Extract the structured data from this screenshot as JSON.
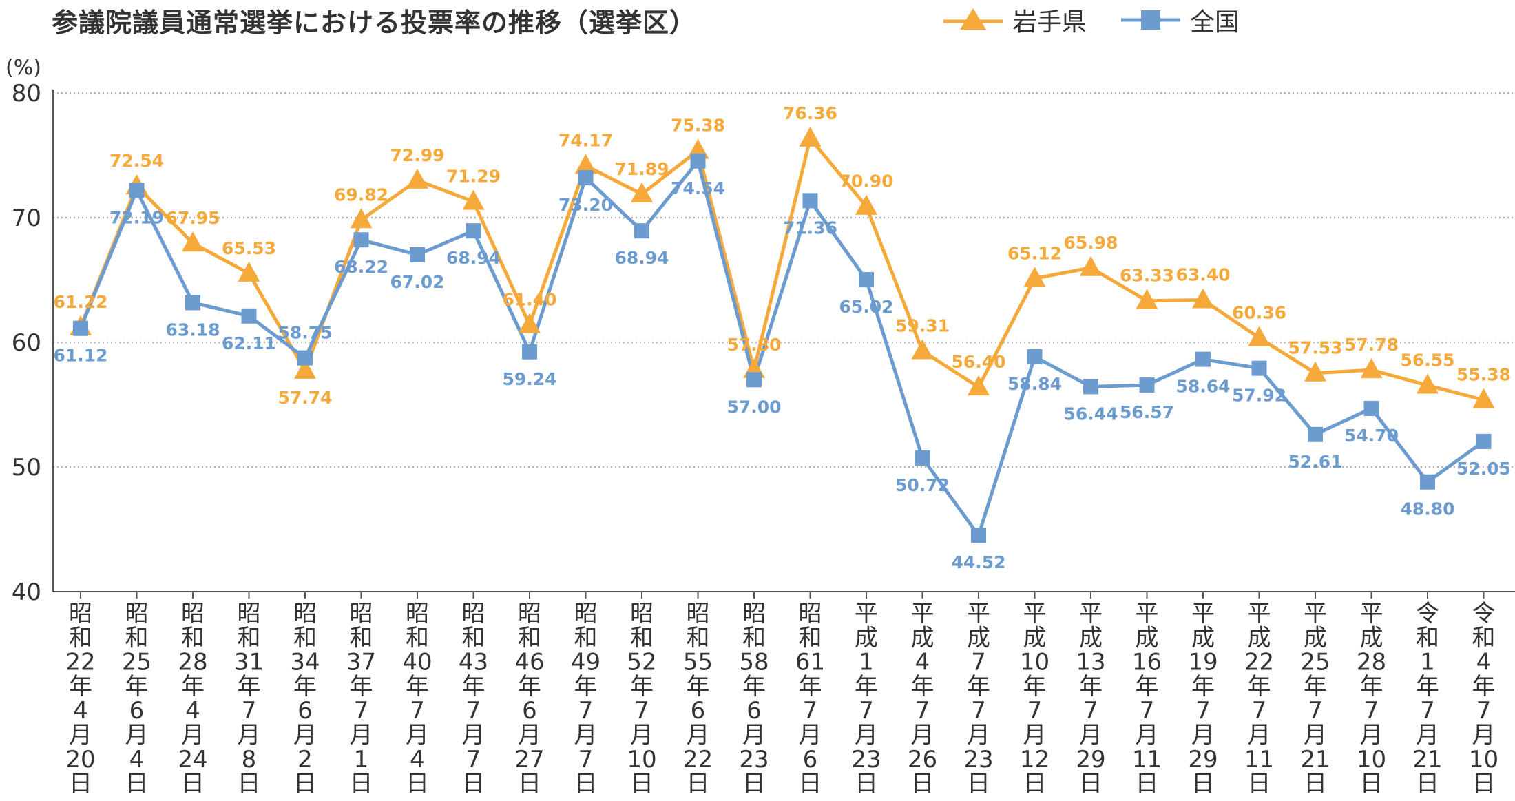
{
  "chart_data": {
    "type": "line",
    "title": "参議院議員通常選挙における投票率の推移（選挙区）",
    "ylabel": "(%)",
    "ylim": [
      40,
      80
    ],
    "yticks": [
      "40",
      "50",
      "60",
      "70",
      "80"
    ],
    "grid": true,
    "legend_position": "top-right",
    "categories": [
      "昭和22年4月20日",
      "昭和25年6月4日",
      "昭和28年4月24日",
      "昭和31年7月8日",
      "昭和34年6月2日",
      "昭和37年7月1日",
      "昭和40年7月4日",
      "昭和43年7月7日",
      "昭和46年6月27日",
      "昭和49年7月7日",
      "昭和52年7月10日",
      "昭和55年6月22日",
      "昭和58年6月23日",
      "昭和61年7月6日",
      "平成1年7月23日",
      "平成4年7月26日",
      "平成7年7月23日",
      "平成10年7月12日",
      "平成13年7月29日",
      "平成16年7月11日",
      "平成19年7月29日",
      "平成22年7月11日",
      "平成25年7月21日",
      "平成28年7月10日",
      "令和1年7月21日",
      "令和4年7月10日"
    ],
    "series": [
      {
        "name": "岩手県",
        "color": "#f5a93a",
        "marker": "triangle",
        "values": [
          61.22,
          72.54,
          67.95,
          65.53,
          57.74,
          69.82,
          72.99,
          71.29,
          61.4,
          74.17,
          71.89,
          75.38,
          57.8,
          76.36,
          70.9,
          59.31,
          56.4,
          65.12,
          65.98,
          63.33,
          63.4,
          60.36,
          57.53,
          57.78,
          56.55,
          55.38
        ],
        "labels": [
          "61.22",
          "72.54",
          "67.95",
          "65.53",
          "57.74",
          "69.82",
          "72.99",
          "71.29",
          "61.40",
          "74.17",
          "71.89",
          "75.38",
          "57.80",
          "76.36",
          "70.90",
          "59.31",
          "56.40",
          "65.12",
          "65.98",
          "63.33",
          "63.40",
          "60.36",
          "57.53",
          "57.78",
          "56.55",
          "55.38"
        ]
      },
      {
        "name": "全国",
        "color": "#6b9bcf",
        "marker": "square",
        "values": [
          61.12,
          72.19,
          63.18,
          62.11,
          58.75,
          68.22,
          67.02,
          68.94,
          59.24,
          73.2,
          68.94,
          74.54,
          57.0,
          71.36,
          65.02,
          50.72,
          44.52,
          58.84,
          56.44,
          56.57,
          58.64,
          57.92,
          52.61,
          54.7,
          48.8,
          52.05
        ],
        "labels": [
          "61.12",
          "72.19",
          "63.18",
          "62.11",
          "58.75",
          "68.22",
          "67.02",
          "68.94",
          "59.24",
          "73.20",
          "68.94",
          "74.54",
          "57.00",
          "71.36",
          "65.02",
          "50.72",
          "44.52",
          "58.84",
          "56.44",
          "56.57",
          "58.64",
          "57.92",
          "52.61",
          "54.70",
          "48.80",
          "52.05"
        ]
      }
    ]
  }
}
